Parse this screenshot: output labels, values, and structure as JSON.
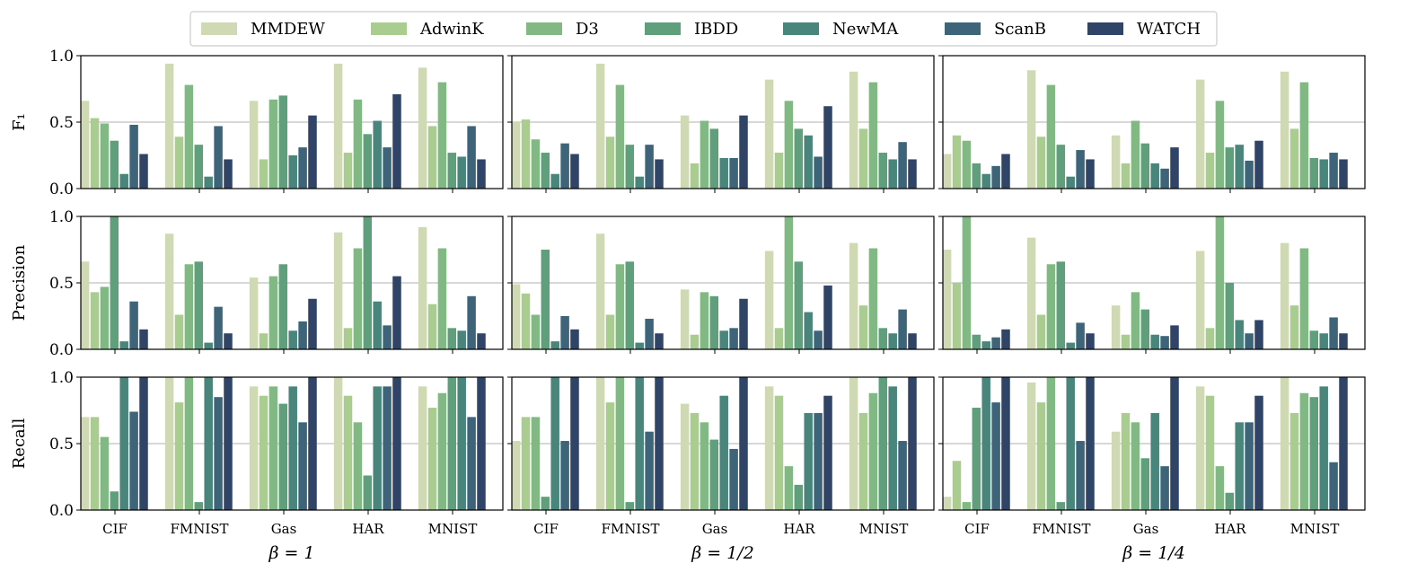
{
  "chart_data": {
    "type": "bar",
    "title": "",
    "legend": {
      "placement": "top",
      "entries": [
        {
          "name": "MMDEW",
          "color": "#cfd9b3"
        },
        {
          "name": "AdwinK",
          "color": "#a9cc8f"
        },
        {
          "name": "D3",
          "color": "#82b883"
        },
        {
          "name": "IBDD",
          "color": "#5f9f7c"
        },
        {
          "name": "NewMA",
          "color": "#4a857b"
        },
        {
          "name": "ScanB",
          "color": "#3d6479"
        },
        {
          "name": "WATCH",
          "color": "#2f4466"
        }
      ]
    },
    "categories": [
      "CIF",
      "FMNIST",
      "Gas",
      "HAR",
      "MNIST"
    ],
    "columns": [
      {
        "label": "β = 1"
      },
      {
        "label": "β = 1/2"
      },
      {
        "label": "β = 1/4"
      }
    ],
    "rows": [
      {
        "metric": "F1",
        "ylabel": "F₁",
        "ylim": [
          0,
          1
        ],
        "yticks": [
          "0.0",
          "0.5",
          "1.0"
        ],
        "ytick_values": [
          0,
          0.5,
          1
        ]
      },
      {
        "metric": "Precision",
        "ylabel": "Precision",
        "ylim": [
          0,
          1
        ],
        "yticks": [
          "0.0",
          "0.5",
          "1.0"
        ],
        "ytick_values": [
          0,
          0.5,
          1
        ]
      },
      {
        "metric": "Recall",
        "ylabel": "Recall",
        "ylim": [
          0,
          1
        ],
        "yticks": [
          "0.0",
          "0.5",
          "1.0"
        ],
        "ytick_values": [
          0,
          0.5,
          1
        ]
      }
    ],
    "grid": "horizontal at 0.5",
    "series_order": [
      "MMDEW",
      "AdwinK",
      "D3",
      "IBDD",
      "NewMA",
      "ScanB",
      "WATCH"
    ],
    "values": {
      "F1": [
        {
          "CIF": [
            0.66,
            0.53,
            0.49,
            0.36,
            0.11,
            0.48,
            0.26
          ],
          "FMNIST": [
            0.94,
            0.39,
            0.78,
            0.33,
            0.09,
            0.47,
            0.22
          ],
          "Gas": [
            0.66,
            0.22,
            0.67,
            0.7,
            0.25,
            0.31,
            0.55
          ],
          "HAR": [
            0.94,
            0.27,
            0.67,
            0.41,
            0.51,
            0.31,
            0.71
          ],
          "MNIST": [
            0.91,
            0.47,
            0.8,
            0.27,
            0.24,
            0.47,
            0.22
          ]
        },
        {
          "CIF": [
            0.5,
            0.52,
            0.37,
            0.27,
            0.11,
            0.34,
            0.26
          ],
          "FMNIST": [
            0.94,
            0.39,
            0.78,
            0.33,
            0.09,
            0.33,
            0.22
          ],
          "Gas": [
            0.55,
            0.19,
            0.51,
            0.45,
            0.23,
            0.23,
            0.55
          ],
          "HAR": [
            0.82,
            0.27,
            0.66,
            0.45,
            0.4,
            0.24,
            0.62
          ],
          "MNIST": [
            0.88,
            0.45,
            0.8,
            0.27,
            0.22,
            0.35,
            0.22
          ]
        },
        {
          "CIF": [
            0.26,
            0.4,
            0.36,
            0.19,
            0.11,
            0.17,
            0.26
          ],
          "FMNIST": [
            0.89,
            0.39,
            0.78,
            0.33,
            0.09,
            0.29,
            0.22
          ],
          "Gas": [
            0.4,
            0.19,
            0.51,
            0.34,
            0.19,
            0.15,
            0.31
          ],
          "HAR": [
            0.82,
            0.27,
            0.66,
            0.31,
            0.33,
            0.21,
            0.36
          ],
          "MNIST": [
            0.88,
            0.45,
            0.8,
            0.23,
            0.22,
            0.27,
            0.22
          ]
        }
      ],
      "Precision": [
        {
          "CIF": [
            0.66,
            0.43,
            0.47,
            1.0,
            0.06,
            0.36,
            0.15
          ],
          "FMNIST": [
            0.87,
            0.26,
            0.64,
            0.66,
            0.05,
            0.32,
            0.12
          ],
          "Gas": [
            0.54,
            0.12,
            0.55,
            0.64,
            0.14,
            0.21,
            0.38
          ],
          "HAR": [
            0.88,
            0.16,
            0.76,
            1.0,
            0.36,
            0.18,
            0.55
          ],
          "MNIST": [
            0.92,
            0.34,
            0.76,
            0.16,
            0.14,
            0.4,
            0.12
          ]
        },
        {
          "CIF": [
            0.49,
            0.42,
            0.26,
            0.75,
            0.06,
            0.25,
            0.15
          ],
          "FMNIST": [
            0.87,
            0.26,
            0.64,
            0.66,
            0.05,
            0.23,
            0.12
          ],
          "Gas": [
            0.45,
            0.11,
            0.43,
            0.4,
            0.14,
            0.16,
            0.38
          ],
          "HAR": [
            0.74,
            0.16,
            1.0,
            0.66,
            0.28,
            0.14,
            0.48
          ],
          "MNIST": [
            0.8,
            0.33,
            0.76,
            0.16,
            0.12,
            0.3,
            0.12
          ]
        },
        {
          "CIF": [
            0.75,
            0.5,
            1.0,
            0.11,
            0.06,
            0.09,
            0.15
          ],
          "FMNIST": [
            0.84,
            0.26,
            0.64,
            0.66,
            0.05,
            0.2,
            0.12
          ],
          "Gas": [
            0.33,
            0.11,
            0.43,
            0.3,
            0.11,
            0.1,
            0.18
          ],
          "HAR": [
            0.74,
            0.16,
            1.0,
            0.5,
            0.22,
            0.12,
            0.22
          ],
          "MNIST": [
            0.8,
            0.33,
            0.76,
            0.14,
            0.12,
            0.24,
            0.12
          ]
        }
      ],
      "Recall": [
        {
          "CIF": [
            0.7,
            0.7,
            0.55,
            0.14,
            1.0,
            0.74,
            1.0
          ],
          "FMNIST": [
            1.0,
            0.81,
            1.0,
            0.06,
            1.0,
            0.85,
            1.0
          ],
          "Gas": [
            0.93,
            0.86,
            0.93,
            0.8,
            0.93,
            0.66,
            1.0
          ],
          "HAR": [
            1.0,
            0.86,
            0.66,
            0.26,
            0.93,
            0.93,
            1.0
          ],
          "MNIST": [
            0.93,
            0.77,
            0.88,
            1.0,
            1.0,
            0.7,
            1.0
          ]
        },
        {
          "CIF": [
            0.52,
            0.7,
            0.7,
            0.1,
            1.0,
            0.52,
            1.0
          ],
          "FMNIST": [
            1.0,
            0.81,
            1.0,
            0.06,
            1.0,
            0.59,
            1.0
          ],
          "Gas": [
            0.8,
            0.73,
            0.66,
            0.53,
            0.86,
            0.46,
            1.0
          ],
          "HAR": [
            0.93,
            0.86,
            0.33,
            0.19,
            0.73,
            0.73,
            0.86
          ],
          "MNIST": [
            1.0,
            0.73,
            0.88,
            1.0,
            0.93,
            0.52,
            1.0
          ]
        },
        {
          "CIF": [
            0.1,
            0.37,
            0.06,
            0.77,
            1.0,
            0.81,
            1.0
          ],
          "FMNIST": [
            0.96,
            0.81,
            1.0,
            0.06,
            1.0,
            0.52,
            1.0
          ],
          "Gas": [
            0.59,
            0.73,
            0.66,
            0.39,
            0.73,
            0.33,
            1.0
          ],
          "HAR": [
            0.93,
            0.86,
            0.33,
            0.13,
            0.66,
            0.66,
            0.86
          ],
          "MNIST": [
            1.0,
            0.73,
            0.88,
            0.85,
            0.93,
            0.36,
            1.0
          ]
        }
      ]
    }
  }
}
